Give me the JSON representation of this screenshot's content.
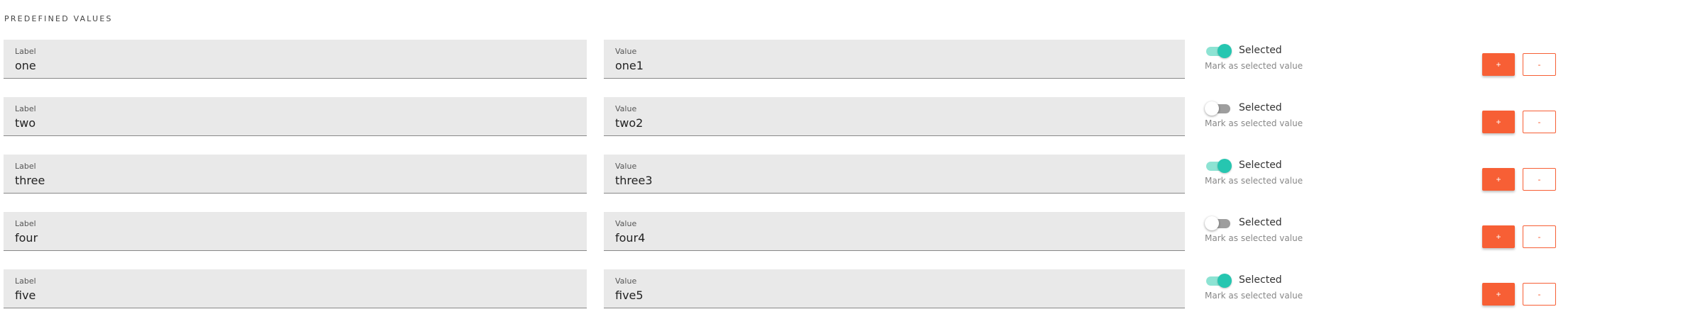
{
  "section_title": "PREDEFINED VALUES",
  "field_label_caption": "Label",
  "field_value_caption": "Value",
  "toggle_label": "Selected",
  "toggle_hint": "Mark as selected value",
  "add_label": "+",
  "remove_label": "-",
  "colors": {
    "accent": "#f75f35",
    "toggle_on": "#26c6b0",
    "field_bg": "#e9e9e9"
  },
  "rows": [
    {
      "label": "one",
      "value": "one1",
      "selected": true
    },
    {
      "label": "two",
      "value": "two2",
      "selected": false
    },
    {
      "label": "three",
      "value": "three3",
      "selected": true
    },
    {
      "label": "four",
      "value": "four4",
      "selected": false
    },
    {
      "label": "five",
      "value": "five5",
      "selected": true
    }
  ]
}
